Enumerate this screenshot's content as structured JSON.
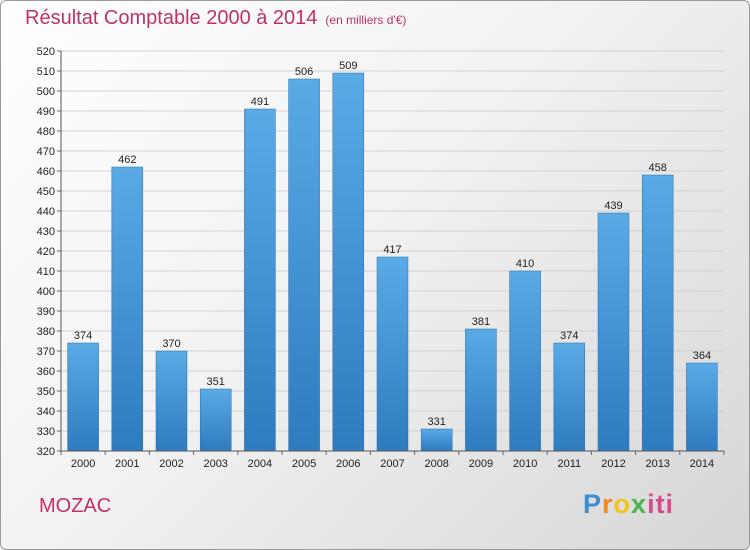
{
  "header": {
    "title": "Résultat Comptable 2000 à 2014",
    "subtitle": "(en milliers d'€)"
  },
  "footer": {
    "city": "MOZAC",
    "logo": {
      "p": "P",
      "r": "r",
      "o": "o",
      "x": "x",
      "i": "iti"
    }
  },
  "colors": {
    "bar_top": "#5aaae6",
    "bar_bottom": "#2e7bbf",
    "title": "#c0306a"
  },
  "chart_data": {
    "type": "bar",
    "categories": [
      "2000",
      "2001",
      "2002",
      "2003",
      "2004",
      "2005",
      "2006",
      "2007",
      "2008",
      "2009",
      "2010",
      "2011",
      "2012",
      "2013",
      "2014"
    ],
    "values": [
      374,
      462,
      370,
      351,
      491,
      506,
      509,
      417,
      331,
      381,
      410,
      374,
      439,
      458,
      364
    ],
    "title": "Résultat Comptable 2000 à 2014",
    "xlabel": "",
    "ylabel": "",
    "ylim": [
      320,
      520
    ],
    "ytick_step": 10,
    "grid": true,
    "legend": "none"
  }
}
